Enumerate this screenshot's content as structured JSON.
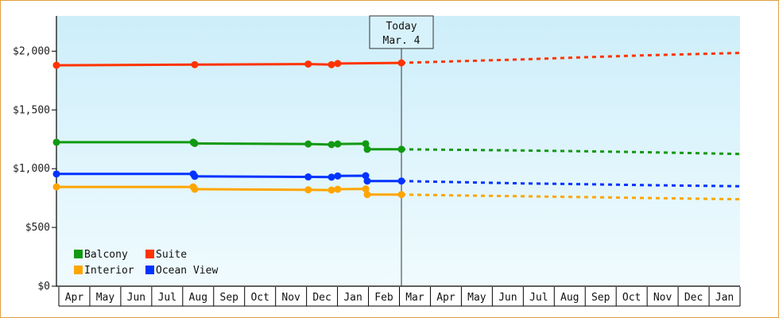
{
  "chart_data": {
    "type": "line",
    "ylim": [
      0,
      2300
    ],
    "y_ticks": [
      {
        "value": 0,
        "label": "$0"
      },
      {
        "value": 500,
        "label": "$500"
      },
      {
        "value": 1000,
        "label": "$1,000"
      },
      {
        "value": 1500,
        "label": "$1,500"
      },
      {
        "value": 2000,
        "label": "$2,000"
      }
    ],
    "months": [
      "Apr",
      "May",
      "Jun",
      "Jul",
      "Aug",
      "Sep",
      "Oct",
      "Nov",
      "Dec",
      "Jan",
      "Feb",
      "Mar",
      "Apr",
      "May",
      "Jun",
      "Jul",
      "Aug",
      "Sep",
      "Oct",
      "Nov",
      "Dec",
      "Jan"
    ],
    "today": {
      "label": "Today",
      "date": "Mar. 4",
      "x": 11.1
    },
    "legend": {
      "placement": "bottom-left"
    },
    "series": [
      {
        "name": "Balcony",
        "color": "#119911",
        "points": [
          [
            0,
            1225
          ],
          [
            4.4,
            1225
          ],
          [
            4.45,
            1215
          ],
          [
            8.1,
            1210
          ],
          [
            8.85,
            1205
          ],
          [
            9.05,
            1210
          ],
          [
            9.95,
            1212
          ],
          [
            10.0,
            1165
          ],
          [
            11.1,
            1165
          ]
        ],
        "forecast": [
          [
            11.1,
            1165
          ],
          [
            13,
            1160
          ],
          [
            15,
            1155
          ],
          [
            17,
            1148
          ],
          [
            19,
            1140
          ],
          [
            22.0,
            1125
          ]
        ]
      },
      {
        "name": "Suite",
        "color": "#ff3300",
        "points": [
          [
            0,
            1880
          ],
          [
            4.45,
            1885
          ],
          [
            8.1,
            1890
          ],
          [
            8.85,
            1885
          ],
          [
            9.05,
            1895
          ],
          [
            11.1,
            1900
          ]
        ],
        "forecast": [
          [
            11.1,
            1900
          ],
          [
            13,
            1915
          ],
          [
            15,
            1930
          ],
          [
            17,
            1948
          ],
          [
            19,
            1965
          ],
          [
            22.0,
            1985
          ]
        ]
      },
      {
        "name": "Interior",
        "color": "#ffa500",
        "points": [
          [
            0,
            845
          ],
          [
            4.4,
            845
          ],
          [
            4.45,
            825
          ],
          [
            8.1,
            820
          ],
          [
            8.85,
            818
          ],
          [
            9.05,
            825
          ],
          [
            9.95,
            828
          ],
          [
            10.0,
            780
          ],
          [
            11.1,
            780
          ]
        ],
        "forecast": [
          [
            11.1,
            780
          ],
          [
            13,
            772
          ],
          [
            15,
            765
          ],
          [
            17,
            758
          ],
          [
            19,
            750
          ],
          [
            22.0,
            740
          ]
        ]
      },
      {
        "name": "Ocean View",
        "color": "#0033ff",
        "points": [
          [
            0,
            955
          ],
          [
            4.4,
            955
          ],
          [
            4.45,
            935
          ],
          [
            8.1,
            930
          ],
          [
            8.85,
            928
          ],
          [
            9.05,
            938
          ],
          [
            9.95,
            940
          ],
          [
            10.0,
            895
          ],
          [
            11.1,
            895
          ]
        ],
        "forecast": [
          [
            11.1,
            895
          ],
          [
            13,
            885
          ],
          [
            15,
            875
          ],
          [
            17,
            868
          ],
          [
            19,
            860
          ],
          [
            22.0,
            850
          ]
        ]
      }
    ]
  }
}
